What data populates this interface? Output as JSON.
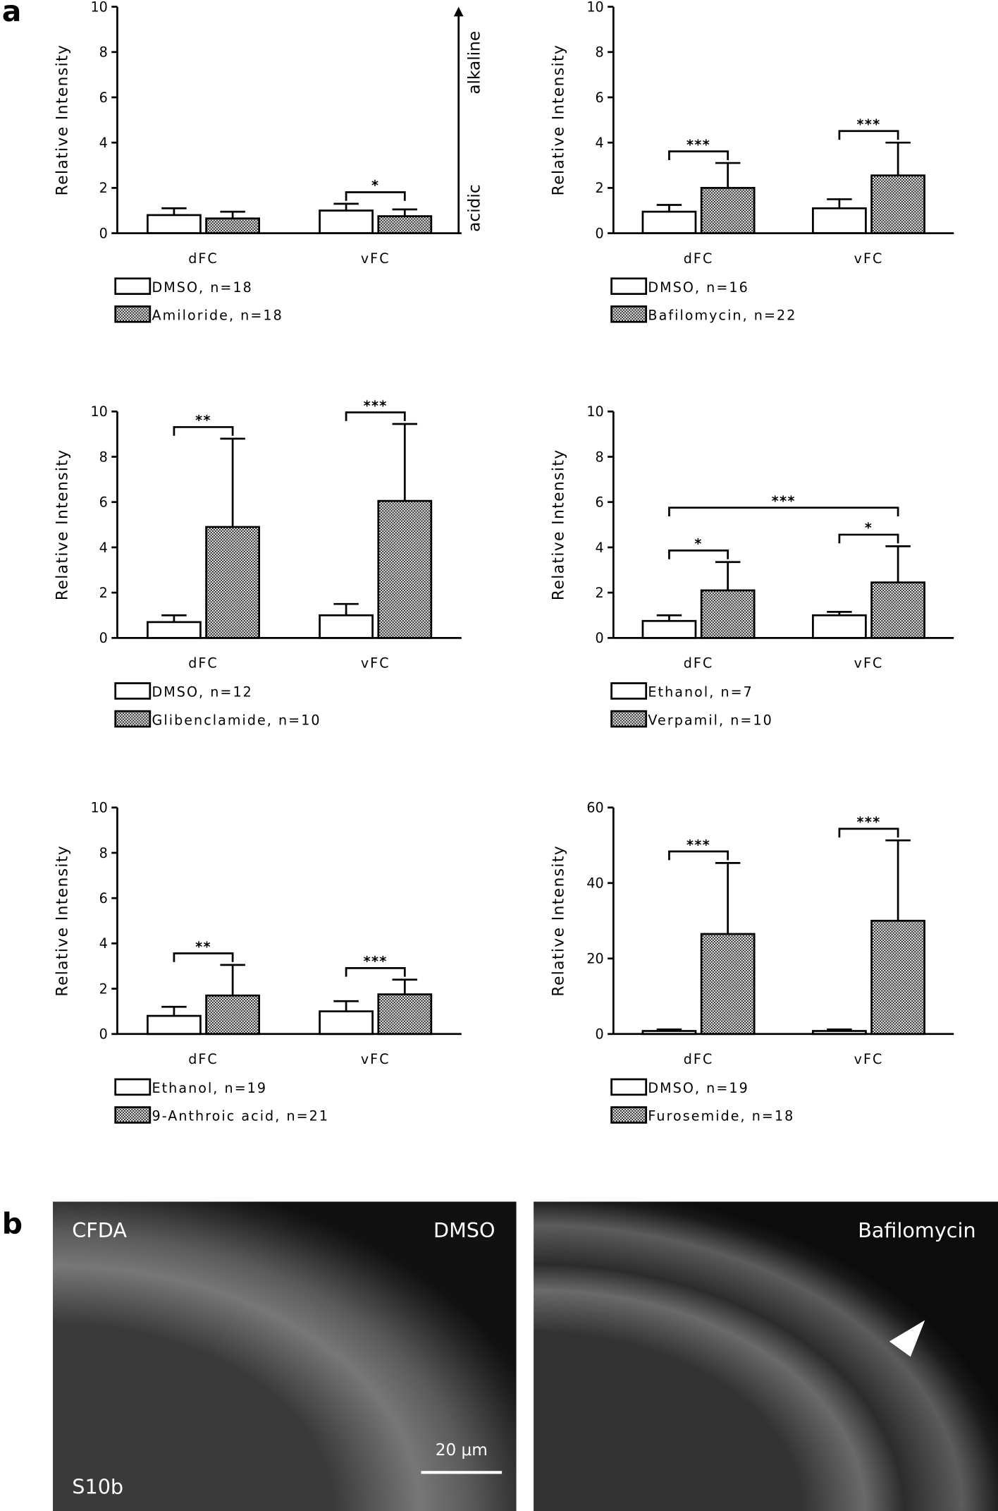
{
  "panel_labels": [
    "a",
    "b"
  ],
  "chart_data": [
    {
      "type": "bar",
      "ylabel": "Relative Intensity",
      "categories": [
        "dFC",
        "vFC"
      ],
      "ylim": [
        0,
        10
      ],
      "yticks": [
        0,
        2,
        4,
        6,
        8,
        10
      ],
      "axis_notes": {
        "top": "alkaline",
        "bottom": "acidic"
      },
      "series": [
        {
          "name": "DMSO, n=18",
          "color": "#ffffff",
          "values": [
            0.8,
            1.0
          ],
          "errors": [
            0.3,
            0.3
          ]
        },
        {
          "name": "Amiloride, n=18",
          "color": "#ffffff",
          "hatch": "checker",
          "values": [
            0.65,
            0.75
          ],
          "errors": [
            0.3,
            0.3
          ]
        }
      ],
      "annotations": [
        {
          "text": "*",
          "categories": [
            1
          ]
        }
      ]
    },
    {
      "type": "bar",
      "ylabel": "Relative Intensity",
      "categories": [
        "dFC",
        "vFC"
      ],
      "ylim": [
        0,
        10
      ],
      "yticks": [
        0,
        2,
        4,
        6,
        8,
        10
      ],
      "series": [
        {
          "name": "DMSO, n=16",
          "color": "#ffffff",
          "values": [
            0.95,
            1.1
          ],
          "errors": [
            0.3,
            0.4
          ]
        },
        {
          "name": "Bafilomycin, n=22",
          "color": "#ffffff",
          "hatch": "checker",
          "values": [
            2.0,
            2.55
          ],
          "errors": [
            1.1,
            1.45
          ]
        }
      ],
      "annotations": [
        {
          "text": "***",
          "categories": [
            0
          ]
        },
        {
          "text": "***",
          "categories": [
            1
          ]
        }
      ]
    },
    {
      "type": "bar",
      "ylabel": "Relative Intensity",
      "categories": [
        "dFC",
        "vFC"
      ],
      "ylim": [
        0,
        10
      ],
      "yticks": [
        0,
        2,
        4,
        6,
        8,
        10
      ],
      "series": [
        {
          "name": "DMSO, n=12",
          "color": "#ffffff",
          "values": [
            0.7,
            1.0
          ],
          "errors": [
            0.3,
            0.5
          ]
        },
        {
          "name": "Glibenclamide, n=10",
          "color": "#ffffff",
          "hatch": "checker",
          "values": [
            4.9,
            6.05
          ],
          "errors": [
            3.9,
            3.4
          ]
        }
      ],
      "annotations": [
        {
          "text": "**",
          "categories": [
            0
          ]
        },
        {
          "text": "***",
          "categories": [
            1
          ]
        }
      ]
    },
    {
      "type": "bar",
      "ylabel": "Relative Intensity",
      "categories": [
        "dFC",
        "vFC"
      ],
      "ylim": [
        0,
        10
      ],
      "yticks": [
        0,
        2,
        4,
        6,
        8,
        10
      ],
      "series": [
        {
          "name": "Ethanol, n=7",
          "color": "#ffffff",
          "values": [
            0.75,
            1.0
          ],
          "errors": [
            0.25,
            0.15
          ]
        },
        {
          "name": "Verpamil, n=10",
          "color": "#ffffff",
          "hatch": "checker",
          "values": [
            2.1,
            2.45
          ],
          "errors": [
            1.25,
            1.6
          ]
        }
      ],
      "annotations": [
        {
          "text": "*",
          "categories": [
            0
          ]
        },
        {
          "text": "*",
          "categories": [
            1
          ]
        },
        {
          "text": "***",
          "categories": [
            0,
            1
          ]
        }
      ]
    },
    {
      "type": "bar",
      "ylabel": "Relative Intensity",
      "categories": [
        "dFC",
        "vFC"
      ],
      "ylim": [
        0,
        10
      ],
      "yticks": [
        0,
        2,
        4,
        6,
        8,
        10
      ],
      "series": [
        {
          "name": "Ethanol, n=19",
          "color": "#ffffff",
          "values": [
            0.8,
            1.0
          ],
          "errors": [
            0.4,
            0.45
          ]
        },
        {
          "name": "9-Anthroic acid, n=21",
          "color": "#ffffff",
          "hatch": "checker",
          "values": [
            1.7,
            1.75
          ],
          "errors": [
            1.35,
            0.65
          ]
        }
      ],
      "annotations": [
        {
          "text": "**",
          "categories": [
            0
          ]
        },
        {
          "text": "***",
          "categories": [
            1
          ]
        }
      ]
    },
    {
      "type": "bar",
      "ylabel": "Relative Intensity",
      "categories": [
        "dFC",
        "vFC"
      ],
      "ylim": [
        0,
        60
      ],
      "yticks": [
        0,
        20,
        40,
        60
      ],
      "series": [
        {
          "name": "DMSO, n=19",
          "color": "#ffffff",
          "values": [
            0.8,
            0.8
          ],
          "errors": [
            0.4,
            0.4
          ]
        },
        {
          "name": "Furosemide, n=18",
          "color": "#ffffff",
          "hatch": "checker",
          "values": [
            26.5,
            30.0
          ],
          "errors": [
            18.8,
            21.3
          ]
        }
      ],
      "annotations": [
        {
          "text": "***",
          "categories": [
            0
          ]
        },
        {
          "text": "***",
          "categories": [
            1
          ]
        }
      ]
    }
  ],
  "images": [
    {
      "stain": "CFDA",
      "treatment": "DMSO",
      "marker": "S10b",
      "scale_bar": "20 μm"
    },
    {
      "treatment": "Bafilomycin"
    }
  ]
}
